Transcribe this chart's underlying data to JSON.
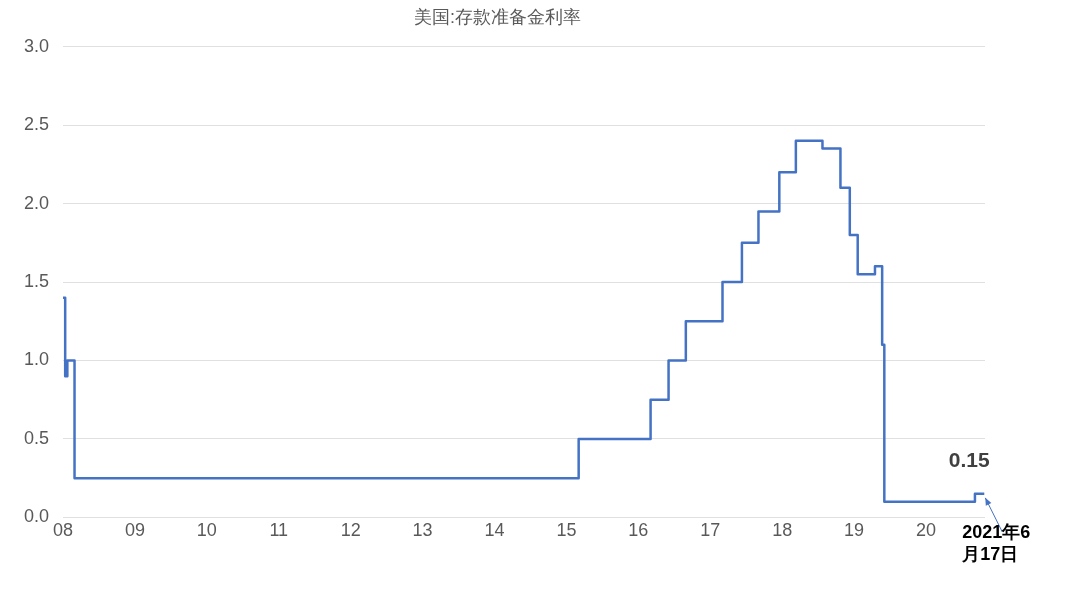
{
  "chart_data": {
    "type": "step",
    "title": "美国:存款准备金利率",
    "x": [
      2008,
      2008.03,
      2008.04,
      2008.06,
      2008.16,
      2015.17,
      2016.17,
      2016.42,
      2016.66,
      2017.17,
      2017.44,
      2017.67,
      2017.96,
      2018.19,
      2018.56,
      2018.81,
      2018.94,
      2019.05,
      2019.29,
      2019.39,
      2019.42,
      2020.68,
      2020.81
    ],
    "series": [
      {
        "color": "#4472c4",
        "values": [
          1.4,
          0.9,
          0.9,
          1.0,
          0.25,
          0.5,
          0.75,
          1.0,
          1.25,
          1.5,
          1.75,
          1.95,
          2.2,
          2.4,
          2.35,
          2.1,
          1.8,
          1.55,
          1.6,
          1.1,
          0.1,
          0.15,
          0.15
        ]
      }
    ],
    "xlim": [
      2008,
      2020.82
    ],
    "xticks": [
      {
        "value": 2008,
        "label": "08"
      },
      {
        "value": 2009,
        "label": "09"
      },
      {
        "value": 2010,
        "label": "10"
      },
      {
        "value": 2011,
        "label": "11"
      },
      {
        "value": 2012,
        "label": "12"
      },
      {
        "value": 2013,
        "label": "13"
      },
      {
        "value": 2014,
        "label": "14"
      },
      {
        "value": 2015,
        "label": "15"
      },
      {
        "value": 2016,
        "label": "16"
      },
      {
        "value": 2017,
        "label": "17"
      },
      {
        "value": 2018,
        "label": "18"
      },
      {
        "value": 2019,
        "label": "19"
      },
      {
        "value": 2020,
        "label": "20"
      }
    ],
    "ylim": [
      0,
      3
    ],
    "yticks": [
      {
        "value": 0,
        "label": "0.0"
      },
      {
        "value": 0.5,
        "label": "0.5"
      },
      {
        "value": 1,
        "label": "1.0"
      },
      {
        "value": 1.5,
        "label": "1.5"
      },
      {
        "value": 2,
        "label": "2.0"
      },
      {
        "value": 2.5,
        "label": "2.5"
      },
      {
        "value": 3,
        "label": "3.0"
      }
    ],
    "grid": "y",
    "legend": false,
    "marker": "none",
    "line_style": "solid",
    "annotations": [
      {
        "text": "0.15",
        "x": 2020.81,
        "y": 0.15
      },
      {
        "text": "2021年6月17日",
        "x": 2020.81,
        "y": 0.15
      }
    ]
  }
}
